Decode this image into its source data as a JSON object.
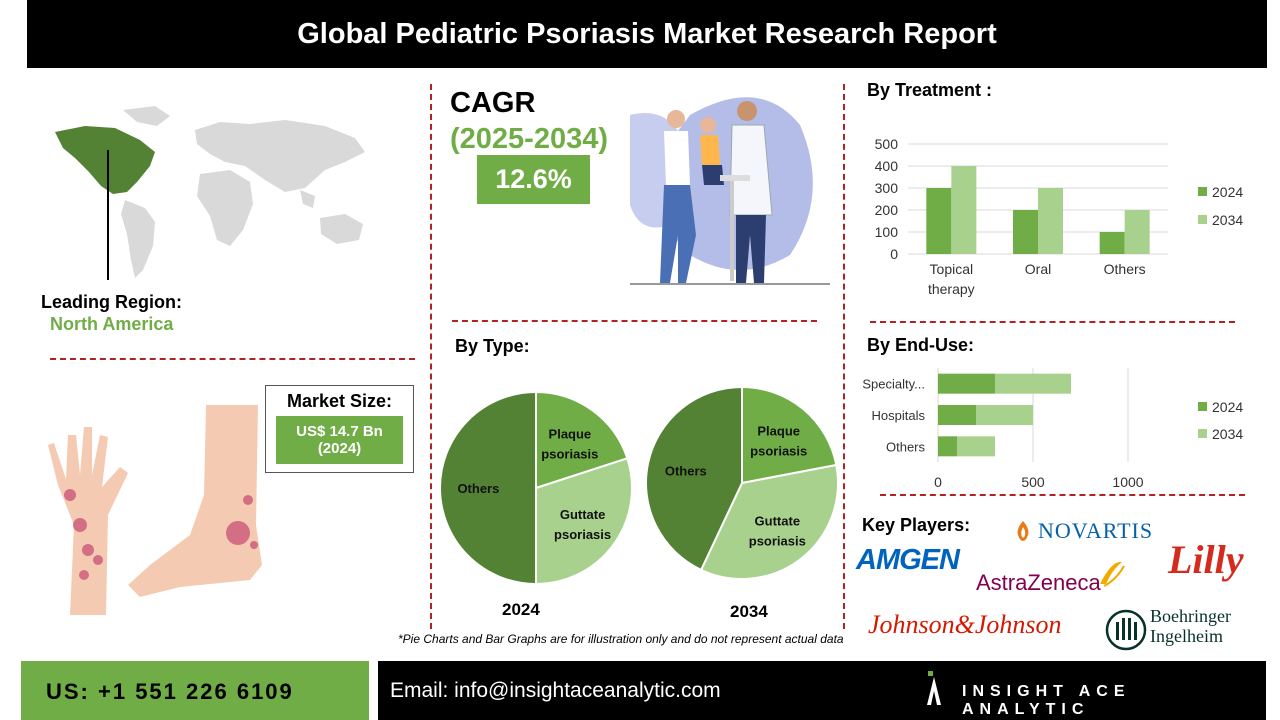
{
  "header": {
    "title": "Global Pediatric Psoriasis Market Research Report"
  },
  "region": {
    "label": "Leading Region:",
    "value": "North America"
  },
  "cagr": {
    "label": "CAGR",
    "period": "(2025-2034)",
    "value": "12.6%"
  },
  "market_size": {
    "label": "Market Size:",
    "value_line1": "US$ 14.7 Bn",
    "value_line2": "(2024)"
  },
  "sections": {
    "treatment": "By Treatment :",
    "type": "By  Type:",
    "end_use": "By  End-Use:",
    "key_players": "Key Players:"
  },
  "footnote": "*Pie Charts and Bar Graphs are for illustration only and do not represent actual data",
  "footer": {
    "phone": "US: +1 551 226 6109",
    "email": "Email: info@insightaceanalytic.com",
    "brand": "INSIGHT ACE ANALYTIC"
  },
  "players": [
    "NOVARTIS",
    "AMGEN",
    "AstraZeneca",
    "Lilly",
    "Johnson&Johnson",
    "Boehringer Ingelheim"
  ],
  "colors": {
    "dark_green": "#548235",
    "mid_green": "#70ad47",
    "light_green": "#a9d18e",
    "red_dash": "#b22222"
  },
  "chart_data": [
    {
      "type": "bar",
      "title": "By Treatment :",
      "categories": [
        "Topical therapy",
        "Oral",
        "Others"
      ],
      "series": [
        {
          "name": "2024",
          "values": [
            300,
            200,
            100
          ]
        },
        {
          "name": "2034",
          "values": [
            400,
            300,
            200
          ]
        }
      ],
      "ylim": [
        0,
        500
      ],
      "yticks": [
        0,
        100,
        200,
        300,
        400,
        500
      ],
      "grid": true,
      "legend": "right"
    },
    {
      "type": "pie",
      "title": "2024",
      "labels": [
        "Plaque psoriasis",
        "Guttate psoriasis",
        "Others"
      ],
      "values": [
        20,
        30,
        50
      ]
    },
    {
      "type": "pie",
      "title": "2034",
      "labels": [
        "Plaque psoriasis",
        "Guttate psoriasis",
        "Others"
      ],
      "values": [
        22,
        35,
        43
      ]
    },
    {
      "type": "bar",
      "orientation": "horizontal",
      "stacked": true,
      "title": "By  End-Use:",
      "categories": [
        "Specialty...",
        "Hospitals",
        "Others"
      ],
      "series": [
        {
          "name": "2024",
          "values": [
            300,
            200,
            100
          ]
        },
        {
          "name": "2034",
          "values": [
            400,
            300,
            200
          ]
        }
      ],
      "xlim": [
        0,
        1200
      ],
      "xticks": [
        0,
        500,
        1000
      ],
      "grid": true,
      "legend": "right"
    }
  ]
}
